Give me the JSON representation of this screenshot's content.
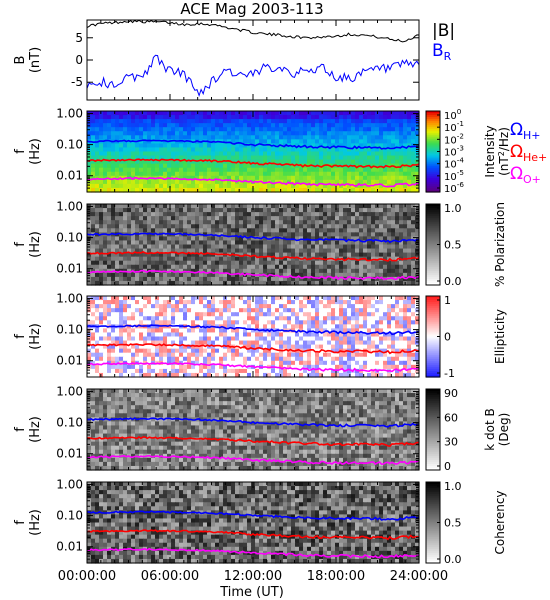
{
  "chart_data": {
    "type": "multi-panel",
    "title": "ACE Mag 2003-113",
    "xlabel": "Time (UT)",
    "xticks": [
      "00:00:00",
      "06:00:00",
      "12:00:00",
      "18:00:00",
      "24:00:00"
    ],
    "xlim_hours": [
      0,
      24
    ],
    "panels": [
      {
        "id": "b-field",
        "type": "line",
        "ylabel_top": "B",
        "ylabel_bottom": "(nT)",
        "yticks": [
          "5",
          "0",
          "-5"
        ],
        "ytick_values": [
          5,
          0,
          -5
        ],
        "ylim": [
          -9,
          9
        ],
        "legend": [
          {
            "label": "|B|",
            "color": "#000000"
          },
          {
            "label": "B",
            "sub": "R",
            "color": "#0000ff"
          }
        ],
        "series": [
          {
            "name": "|B|",
            "color": "#000000",
            "x_hours": [
              0,
              1,
              2,
              3,
              4,
              5,
              6,
              7,
              8,
              9,
              10,
              11,
              12,
              13,
              14,
              15,
              16,
              17,
              18,
              19,
              20,
              21,
              22,
              23,
              24
            ],
            "values": [
              7.6,
              8.2,
              8.4,
              8.8,
              8.6,
              8.6,
              8.4,
              8.0,
              8.2,
              8.0,
              7.4,
              6.8,
              6.2,
              5.8,
              5.6,
              5.2,
              5.0,
              5.2,
              5.4,
              5.8,
              5.6,
              5.2,
              4.6,
              4.2,
              5.8
            ]
          },
          {
            "name": "B_R",
            "color": "#0000ff",
            "x_hours": [
              0,
              1,
              2,
              3,
              4,
              5,
              6,
              7,
              8,
              9,
              10,
              11,
              12,
              13,
              14,
              15,
              16,
              17,
              18,
              19,
              20,
              21,
              22,
              23,
              24
            ],
            "values": [
              -5.5,
              -5.0,
              -5.5,
              -4.0,
              -3.5,
              0.5,
              -2.5,
              -3.0,
              -7.5,
              -5.0,
              -2.0,
              -3.5,
              -3.5,
              -1.5,
              -1.5,
              -3.0,
              -2.5,
              -1.5,
              -4.0,
              -4.0,
              -3.0,
              -2.0,
              -2.0,
              -1.0,
              -1.0
            ]
          }
        ]
      },
      {
        "id": "intensity",
        "type": "spectrogram",
        "ylabel_top": "f",
        "ylabel_bottom": "(Hz)",
        "yticks": [
          "1.00",
          "0.10",
          "0.01"
        ],
        "ytick_values": [
          1.0,
          0.1,
          0.01
        ],
        "ylim": [
          0.003,
          1.2
        ],
        "colorbar": {
          "scheme": "rainbow",
          "ticks": [
            "10^0",
            "10^-1",
            "10^-2",
            "10^-3",
            "10^-4",
            "10^-5",
            "10^-6"
          ],
          "label": "Intensity (nT^2/Hz)"
        },
        "legend": [
          {
            "label": "Ω",
            "sub": "H+",
            "color": "#0000ff"
          },
          {
            "label": "Ω",
            "sub": "He+",
            "color": "#ff0000"
          },
          {
            "label": "Ω",
            "sub": "O+",
            "color": "#ff00ff"
          }
        ]
      },
      {
        "id": "polarization",
        "type": "spectrogram",
        "ylabel_top": "f",
        "ylabel_bottom": "(Hz)",
        "yticks": [
          "1.00",
          "0.10",
          "0.01"
        ],
        "ytick_values": [
          1.0,
          0.1,
          0.01
        ],
        "ylim": [
          0.003,
          1.2
        ],
        "colorbar": {
          "scheme": "grey",
          "ticks": [
            "1.0",
            "0.5",
            "0.0"
          ],
          "label": "% Polarization"
        }
      },
      {
        "id": "ellipticity",
        "type": "spectrogram",
        "ylabel_top": "f",
        "ylabel_bottom": "(Hz)",
        "yticks": [
          "1.00",
          "0.10",
          "0.01"
        ],
        "ytick_values": [
          1.0,
          0.1,
          0.01
        ],
        "ylim": [
          0.003,
          1.2
        ],
        "colorbar": {
          "scheme": "bluewhitered",
          "ticks": [
            "1",
            "0",
            "-1"
          ],
          "label": "Ellipticity"
        }
      },
      {
        "id": "kdotb",
        "type": "spectrogram",
        "ylabel_top": "f",
        "ylabel_bottom": "(Hz)",
        "yticks": [
          "1.00",
          "0.10",
          "0.01"
        ],
        "ytick_values": [
          1.0,
          0.1,
          0.01
        ],
        "ylim": [
          0.003,
          1.2
        ],
        "colorbar": {
          "scheme": "grey",
          "ticks": [
            "90",
            "60",
            "30",
            "0"
          ],
          "label": "k dot B (Deg)"
        }
      },
      {
        "id": "coherency",
        "type": "spectrogram",
        "ylabel_top": "f",
        "ylabel_bottom": "(Hz)",
        "yticks": [
          "1.00",
          "0.10",
          "0.01"
        ],
        "ytick_values": [
          1.0,
          0.1,
          0.01
        ],
        "ylim": [
          0.003,
          1.2
        ],
        "colorbar": {
          "scheme": "grey",
          "ticks": [
            "1.0",
            "0.5",
            "0.0"
          ],
          "label": "Coherency"
        }
      }
    ],
    "gyrofrequency_lines": [
      {
        "name": "Ω_H+",
        "color": "#0000ff",
        "x_hours": [
          0,
          2,
          4,
          6,
          8,
          10,
          12,
          14,
          16,
          18,
          20,
          22,
          24
        ],
        "values": [
          0.125,
          0.13,
          0.133,
          0.13,
          0.125,
          0.115,
          0.1,
          0.092,
          0.085,
          0.082,
          0.08,
          0.078,
          0.088
        ]
      },
      {
        "name": "Ω_He+",
        "color": "#ff0000",
        "x_hours": [
          0,
          2,
          4,
          6,
          8,
          10,
          12,
          14,
          16,
          18,
          20,
          22,
          24
        ],
        "values": [
          0.031,
          0.032,
          0.033,
          0.032,
          0.031,
          0.029,
          0.025,
          0.023,
          0.021,
          0.02,
          0.02,
          0.019,
          0.022
        ]
      },
      {
        "name": "Ω_O+",
        "color": "#ff00ff",
        "x_hours": [
          0,
          2,
          4,
          6,
          8,
          10,
          12,
          14,
          16,
          18,
          20,
          22,
          24
        ],
        "values": [
          0.0078,
          0.008,
          0.0083,
          0.008,
          0.0078,
          0.0072,
          0.0063,
          0.0058,
          0.0053,
          0.0051,
          0.005,
          0.0049,
          0.0055
        ]
      }
    ]
  }
}
